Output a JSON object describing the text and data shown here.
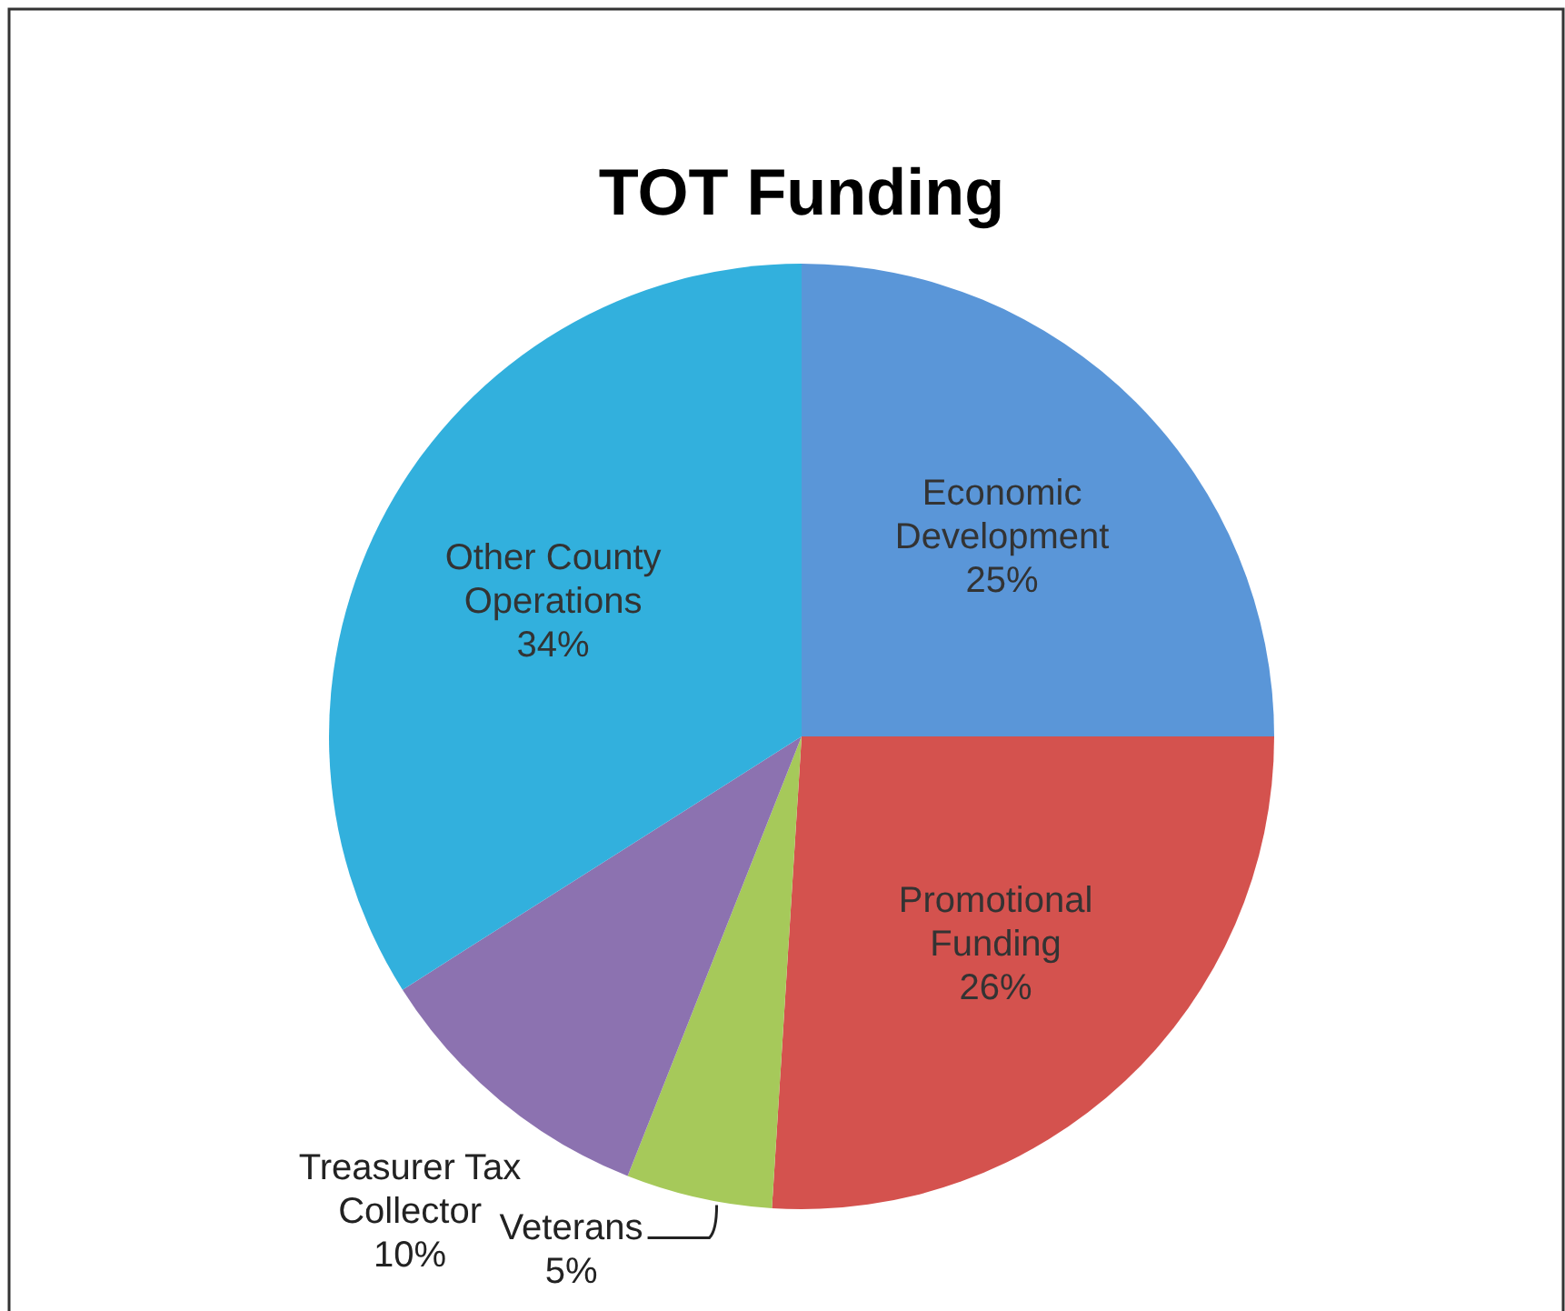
{
  "chart_data": {
    "type": "pie",
    "title": "TOT Funding",
    "categories": [
      "Economic Development",
      "Promotional Funding",
      "Veterans",
      "Treasurer Tax Collector",
      "Other County Operations"
    ],
    "values": [
      25,
      26,
      5,
      10,
      34
    ],
    "value_labels": [
      "25%",
      "26%",
      "5%",
      "10%",
      "34%"
    ],
    "colors": [
      "#5a96d8",
      "#d4524e",
      "#a6c95a",
      "#8c72b0",
      "#32b0dd"
    ]
  }
}
